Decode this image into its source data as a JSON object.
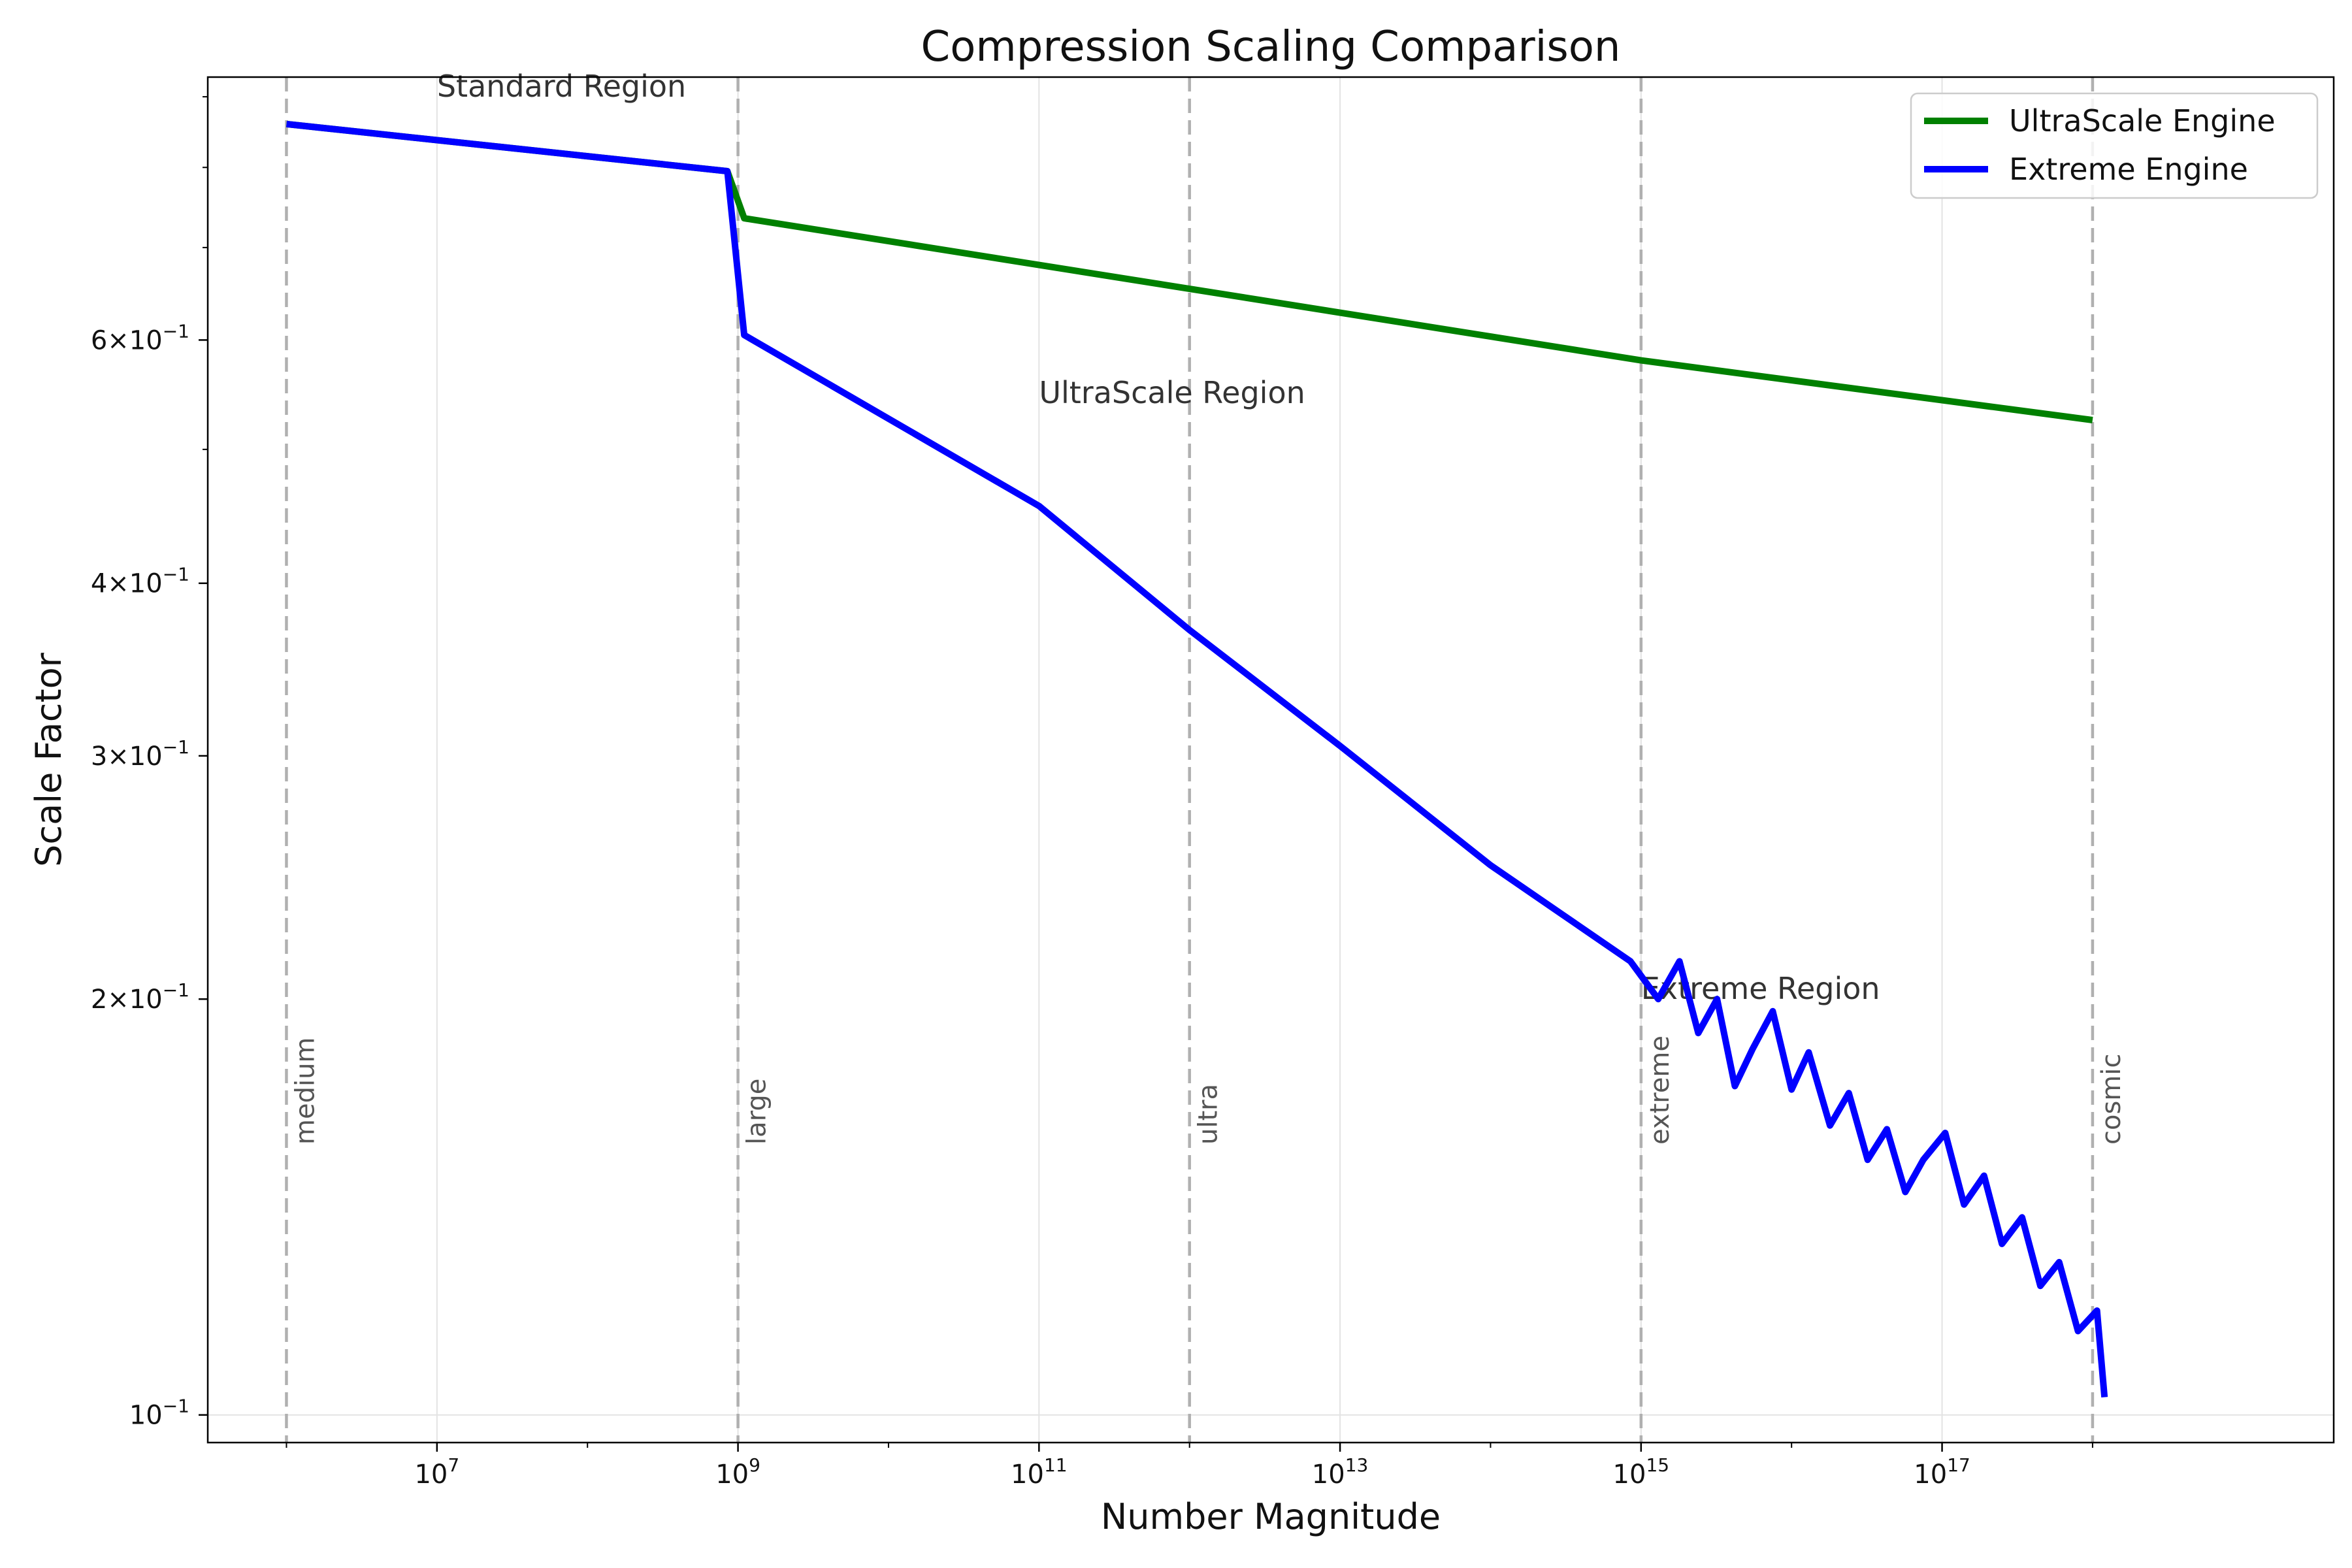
{
  "chart_data": {
    "type": "line",
    "title": "Compression Scaling Comparison",
    "xlabel": "Number Magnitude",
    "ylabel": "Scale Factor",
    "xscale": "log",
    "yscale": "log",
    "xlim": [
      300000,
      4e+19
    ],
    "ylim": [
      0.0955,
      0.93
    ],
    "grid": true,
    "legend_position": "top-right",
    "x_ticks": [
      {
        "value": 10000000.0,
        "base": "10",
        "exp": "7"
      },
      {
        "value": 1000000000.0,
        "base": "10",
        "exp": "9"
      },
      {
        "value": 100000000000.0,
        "base": "10",
        "exp": "11"
      },
      {
        "value": 10000000000000.0,
        "base": "10",
        "exp": "13"
      },
      {
        "value": 1000000000000000.0,
        "base": "10",
        "exp": "15"
      },
      {
        "value": 1e+17,
        "base": "10",
        "exp": "17"
      }
    ],
    "y_ticks": [
      {
        "value": 0.1,
        "mant": "",
        "base": "10",
        "exp": "−1"
      },
      {
        "value": 0.2,
        "mant": "2×",
        "base": "10",
        "exp": "−1"
      },
      {
        "value": 0.3,
        "mant": "3×",
        "base": "10",
        "exp": "−1"
      },
      {
        "value": 0.4,
        "mant": "4×",
        "base": "10",
        "exp": "−1"
      },
      {
        "value": 0.6,
        "mant": "6×",
        "base": "10",
        "exp": "−1"
      }
    ],
    "series": [
      {
        "name": "UltraScale Engine",
        "color": "#008000",
        "points": [
          [
            1000000.0,
            0.86
          ],
          [
            850000000.0,
            0.795
          ],
          [
            1100000000.0,
            0.735
          ],
          [
            1000000000000000.0,
            0.58
          ],
          [
            1e+18,
            0.525
          ]
        ]
      },
      {
        "name": "Extreme Engine",
        "color": "#0000ff",
        "points": [
          [
            1000000.0,
            0.86
          ],
          [
            850000000.0,
            0.795
          ],
          [
            1100000000.0,
            0.605
          ],
          [
            100000000000.0,
            0.455
          ],
          [
            1000000000000.0,
            0.37
          ],
          [
            10000000000000.0,
            0.305
          ],
          [
            100000000000000.0,
            0.25
          ],
          [
            850000000000000.0,
            0.213
          ],
          [
            1300000000000000.0,
            0.2
          ],
          [
            1800000000000000.0,
            0.213
          ],
          [
            2400000000000000.0,
            0.189
          ],
          [
            3200000000000000.0,
            0.2
          ],
          [
            4200000000000000.0,
            0.173
          ],
          [
            5500000000000000.0,
            0.184
          ],
          [
            7500000000000000.0,
            0.196
          ],
          [
            1e+16,
            0.172
          ],
          [
            1.3e+16,
            0.183
          ],
          [
            1.8e+16,
            0.162
          ],
          [
            2.4e+16,
            0.171
          ],
          [
            3.2e+16,
            0.153
          ],
          [
            4.3e+16,
            0.161
          ],
          [
            5.7e+16,
            0.145
          ],
          [
            7.5e+16,
            0.153
          ],
          [
            1.05e+17,
            0.16
          ],
          [
            1.4e+17,
            0.142
          ],
          [
            1.9e+17,
            0.149
          ],
          [
            2.5e+17,
            0.133
          ],
          [
            3.4e+17,
            0.139
          ],
          [
            4.5e+17,
            0.124
          ],
          [
            6e+17,
            0.129
          ],
          [
            8e+17,
            0.115
          ],
          [
            1.07e+18,
            0.119
          ],
          [
            1.2e+18,
            0.103
          ]
        ]
      }
    ],
    "vlines": [
      {
        "x": 1000000.0,
        "label": "medium"
      },
      {
        "x": 1000000000.0,
        "label": "large"
      },
      {
        "x": 1000000000000.0,
        "label": "ultra"
      },
      {
        "x": 1000000000000000.0,
        "label": "extreme"
      },
      {
        "x": 1e+18,
        "label": "cosmic"
      }
    ],
    "annotations": [
      {
        "text": "Standard Region",
        "x": 10000000.0,
        "y": 0.9
      },
      {
        "text": "UltraScale Region",
        "x": 100000000000.0,
        "y": 0.54
      },
      {
        "text": "Extreme Region",
        "x": 1000000000000000.0,
        "y": 0.2
      }
    ]
  }
}
